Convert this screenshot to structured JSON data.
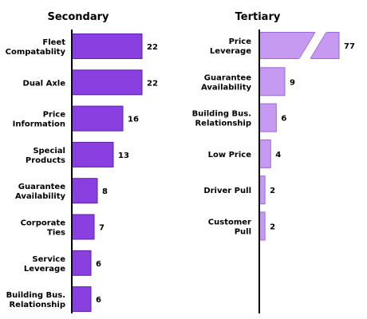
{
  "chart_data": [
    {
      "type": "bar",
      "orientation": "horizontal",
      "title": "Secondary",
      "categories": [
        [
          "Fleet",
          "Compatablity"
        ],
        [
          "Dual Axle"
        ],
        [
          "Price",
          "Information"
        ],
        [
          "Special",
          "Products"
        ],
        [
          "Guarantee",
          "Availability"
        ],
        [
          "Corporate",
          "Ties"
        ],
        [
          "Service",
          "Leverage"
        ],
        [
          "Building Bus.",
          "Relationship"
        ]
      ],
      "values": [
        22,
        22,
        16,
        13,
        8,
        7,
        6,
        6
      ],
      "xlim": [
        0,
        22
      ],
      "bar_color": "#8A3FE0",
      "bar_edge_color": "#5A1FA8",
      "grid": false
    },
    {
      "type": "bar",
      "orientation": "horizontal",
      "title": "Tertiary",
      "categories": [
        [
          "Price",
          "Leverage"
        ],
        [
          "Guarantee",
          "Availability"
        ],
        [
          "Building Bus.",
          "Relationship"
        ],
        [
          "Low Price"
        ],
        [
          "Driver Pull"
        ],
        [
          "Customer",
          "Pull"
        ]
      ],
      "values": [
        77,
        9,
        6,
        4,
        2,
        2
      ],
      "axis_break": true,
      "bar_color": "#C79AF2",
      "bar_edge_color": "#9C66D8",
      "grid": false
    }
  ]
}
